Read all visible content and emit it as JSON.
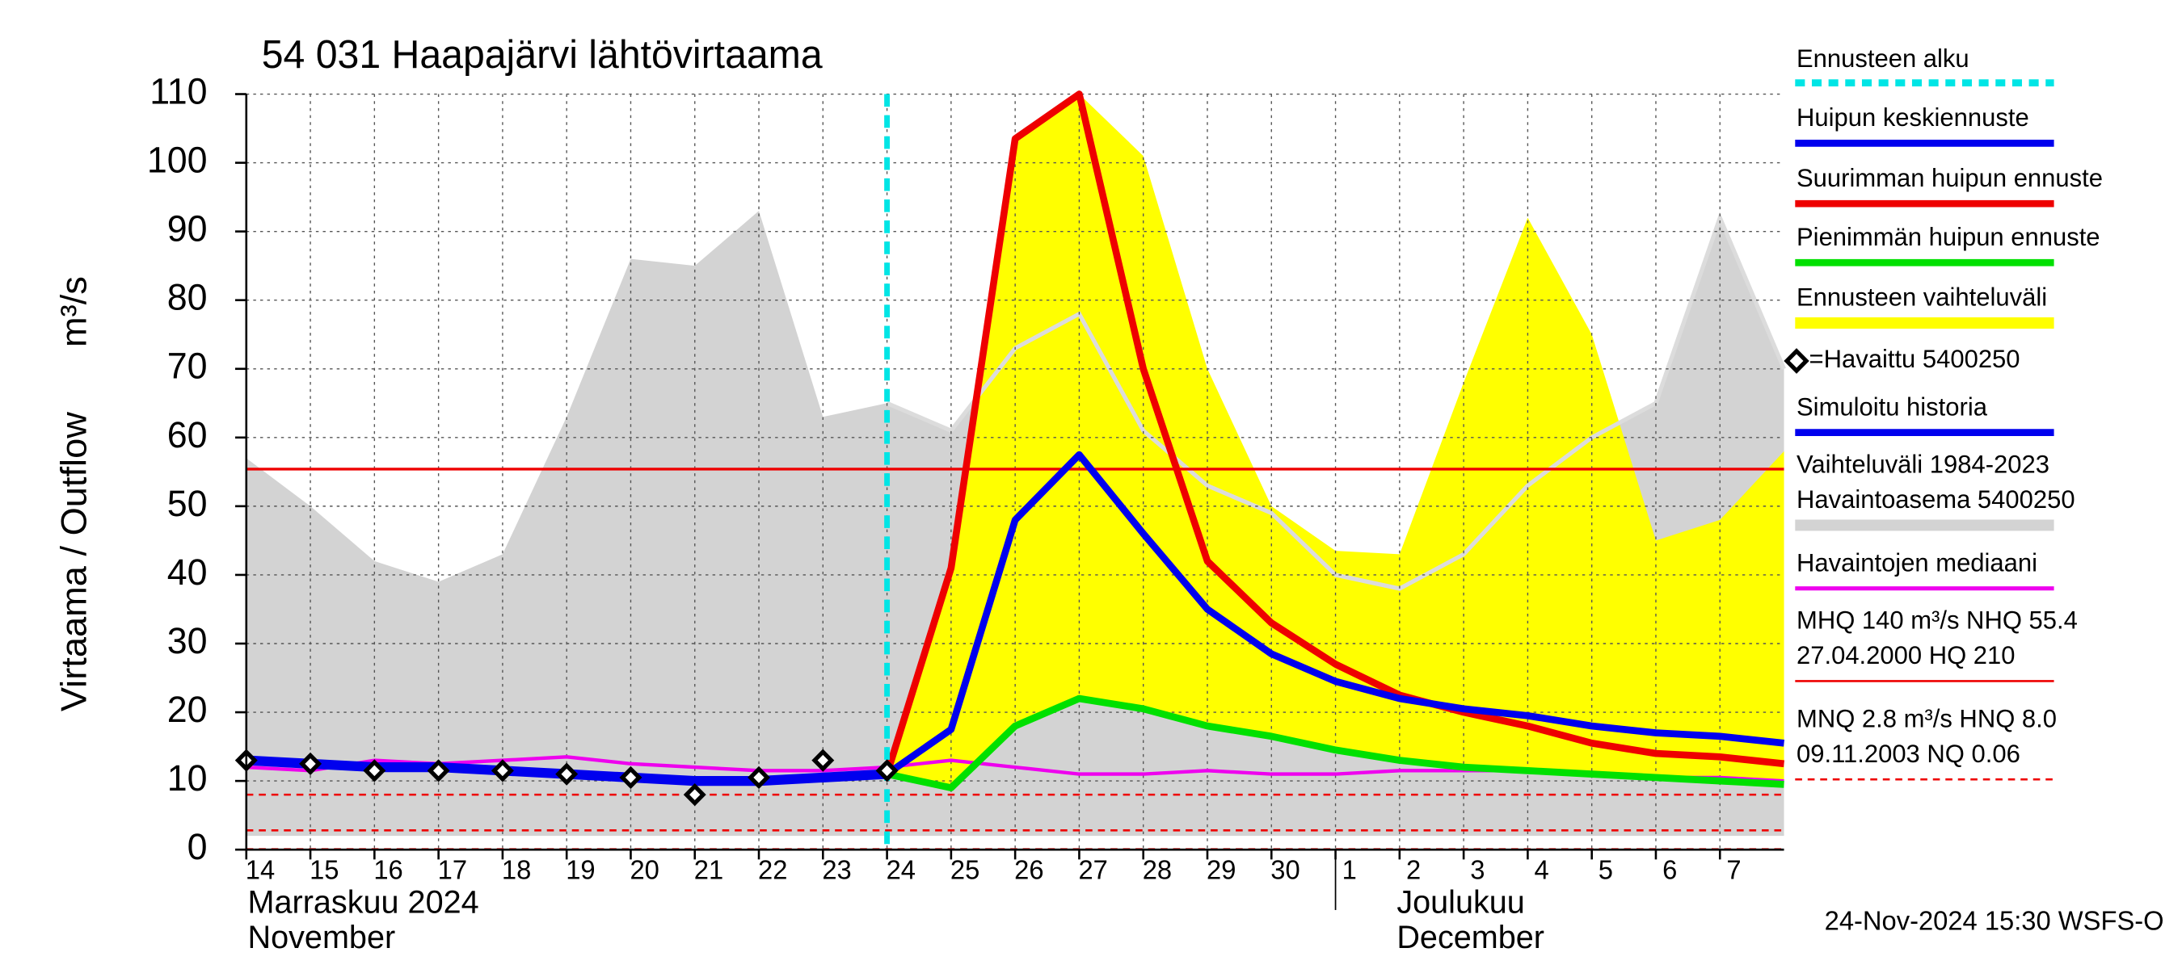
{
  "chart_data": {
    "type": "line",
    "title": "54 031 Haapajärvi lähtövirtaama",
    "y_label": [
      "Virtaama / Outflow",
      "m³/s"
    ],
    "x": [
      "2024-11-14",
      "2024-11-15",
      "2024-11-16",
      "2024-11-17",
      "2024-11-18",
      "2024-11-19",
      "2024-11-20",
      "2024-11-21",
      "2024-11-22",
      "2024-11-23",
      "2024-11-24",
      "2024-11-25",
      "2024-11-26",
      "2024-11-27",
      "2024-11-28",
      "2024-11-29",
      "2024-11-30",
      "2024-12-01",
      "2024-12-02",
      "2024-12-03",
      "2024-12-04",
      "2024-12-05",
      "2024-12-06",
      "2024-12-07",
      "2024-12-08"
    ],
    "xlim": [
      "2024-11-14",
      "2024-12-08"
    ],
    "xticks": [
      {
        "value": "2024-11-14",
        "label": "14"
      },
      {
        "value": "2024-11-15",
        "label": "15"
      },
      {
        "value": "2024-11-16",
        "label": "16"
      },
      {
        "value": "2024-11-17",
        "label": "17"
      },
      {
        "value": "2024-11-18",
        "label": "18"
      },
      {
        "value": "2024-11-19",
        "label": "19"
      },
      {
        "value": "2024-11-20",
        "label": "20"
      },
      {
        "value": "2024-11-21",
        "label": "21"
      },
      {
        "value": "2024-11-22",
        "label": "22"
      },
      {
        "value": "2024-11-23",
        "label": "23"
      },
      {
        "value": "2024-11-24",
        "label": "24"
      },
      {
        "value": "2024-11-25",
        "label": "25"
      },
      {
        "value": "2024-11-26",
        "label": "26"
      },
      {
        "value": "2024-11-27",
        "label": "27"
      },
      {
        "value": "2024-11-28",
        "label": "28"
      },
      {
        "value": "2024-11-29",
        "label": "29"
      },
      {
        "value": "2024-11-30",
        "label": "30"
      },
      {
        "value": "2024-12-01",
        "label": "1"
      },
      {
        "value": "2024-12-02",
        "label": "2"
      },
      {
        "value": "2024-12-03",
        "label": "3"
      },
      {
        "value": "2024-12-04",
        "label": "4"
      },
      {
        "value": "2024-12-05",
        "label": "5"
      },
      {
        "value": "2024-12-06",
        "label": "6"
      },
      {
        "value": "2024-12-07",
        "label": "7"
      }
    ],
    "month_labels": [
      [
        "Marraskuu 2024",
        "November"
      ],
      [
        "Joulukuu",
        "December"
      ]
    ],
    "ylim": [
      0,
      110
    ],
    "yticks": [
      0,
      10,
      20,
      30,
      40,
      50,
      60,
      70,
      80,
      90,
      100,
      110
    ],
    "grid": true,
    "forecast_start": {
      "name": "Ennusteen alku",
      "x": "2024-11-24",
      "color": "#00e5e5"
    },
    "series": [
      {
        "name": "Huipun keskiennuste",
        "kind": "line",
        "color": "#0000ee",
        "values": [
          null,
          null,
          null,
          null,
          null,
          null,
          null,
          null,
          null,
          null,
          11,
          17.5,
          48,
          57.5,
          46,
          35,
          28.5,
          24.5,
          22,
          20.5,
          19.5,
          18,
          17,
          16.5,
          15.5
        ]
      },
      {
        "name": "Suurimman huipun ennuste",
        "kind": "line",
        "color": "#ee0000",
        "values": [
          null,
          null,
          null,
          null,
          null,
          null,
          null,
          null,
          null,
          null,
          11,
          41,
          103.5,
          110,
          70,
          42,
          33,
          27,
          22.5,
          20,
          18,
          15.5,
          14,
          13.5,
          12.5
        ]
      },
      {
        "name": "Pienimmän huipun ennuste",
        "kind": "line",
        "color": "#00e000",
        "values": [
          null,
          null,
          null,
          null,
          null,
          null,
          null,
          null,
          null,
          null,
          11,
          9,
          18,
          22,
          20.5,
          18,
          16.5,
          14.5,
          13,
          12,
          11.5,
          11,
          10.5,
          10,
          9.5
        ]
      },
      {
        "name": "Ennusteen vaihteluväli",
        "kind": "band",
        "color": "#ffff00",
        "lower": [
          null,
          null,
          null,
          null,
          null,
          null,
          null,
          null,
          null,
          null,
          11,
          9,
          18,
          22,
          20.5,
          18,
          16.5,
          14.5,
          13,
          12,
          11.5,
          11,
          10.5,
          10,
          9.5
        ],
        "values": [
          null,
          null,
          null,
          null,
          null,
          null,
          null,
          null,
          null,
          null,
          11,
          42,
          104,
          110,
          101,
          70,
          50,
          43.5,
          43,
          68,
          92,
          75,
          45,
          48,
          58
        ]
      },
      {
        "name": "=Havaittu 5400250",
        "kind": "markers",
        "color": "#000000",
        "values": [
          13,
          12.5,
          11.5,
          11.5,
          11.5,
          11,
          10.5,
          8,
          10.5,
          13,
          11.5,
          null,
          null,
          null,
          null,
          null,
          null,
          null,
          null,
          null,
          null,
          null,
          null,
          null,
          null
        ]
      },
      {
        "name": "Simuloitu historia",
        "kind": "line",
        "color": "#0000ee",
        "values": [
          13,
          12.5,
          12,
          12,
          11.5,
          11,
          10.5,
          10,
          10,
          10.5,
          11,
          null,
          null,
          null,
          null,
          null,
          null,
          null,
          null,
          null,
          null,
          null,
          null,
          null,
          null
        ]
      },
      {
        "name": "Vaihteluväli 1984-2023",
        "name_line2": " Havaintoasema 5400250",
        "kind": "band",
        "color": "#d3d3d3",
        "lower": [
          2,
          2,
          2,
          2,
          2,
          2,
          2,
          2,
          2,
          2,
          2,
          2,
          2,
          2,
          2,
          2,
          2,
          2,
          2,
          2,
          2,
          2,
          2,
          2,
          2
        ],
        "values": [
          57,
          50,
          42,
          39,
          43,
          63,
          86,
          85,
          93,
          63,
          65,
          61,
          73,
          78,
          61,
          53,
          49,
          40,
          38,
          43,
          53,
          60,
          65,
          92,
          70
        ]
      },
      {
        "name": "Havaintojen mediaani",
        "kind": "line",
        "color": "#ee00ee",
        "values": [
          12,
          11.5,
          13,
          12.5,
          13,
          13.5,
          12.5,
          12,
          11.5,
          11.5,
          12,
          13,
          12,
          11,
          11,
          11.5,
          11,
          11,
          11.5,
          11.5,
          11.5,
          11,
          10.5,
          10.5,
          10
        ]
      }
    ],
    "reference_lines": [
      {
        "value": 55.4,
        "color": "#ee0000",
        "dashed": false
      },
      {
        "value": 8.0,
        "color": "#ee0000",
        "dashed": true
      },
      {
        "value": 2.8,
        "color": "#ee0000",
        "dashed": true
      },
      {
        "value": 0.06,
        "color": "#ee0000",
        "dashed": true
      }
    ],
    "stats_text": [
      [
        "MHQ  140 m³/s NHQ 55.4",
        "27.04.2000 HQ  210"
      ],
      [
        "MNQ  2.8 m³/s HNQ  8.0",
        "09.11.2003 NQ 0.06"
      ]
    ],
    "footer": "24-Nov-2024 15:30 WSFS-O"
  }
}
